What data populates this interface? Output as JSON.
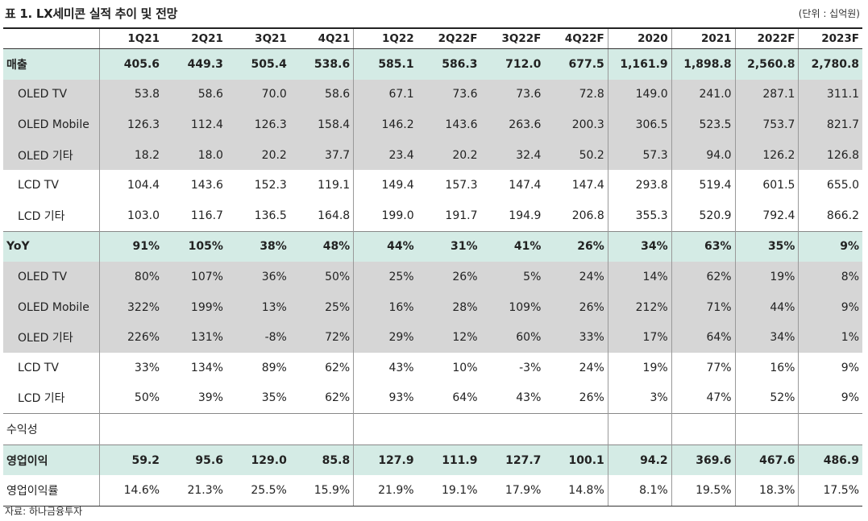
{
  "title": "표 1. LX세미콘 실적 추이 및 전망",
  "unit": "(단위 : 십억원)",
  "columns": [
    "1Q21",
    "2Q21",
    "3Q21",
    "4Q21",
    "1Q22",
    "2Q22F",
    "3Q22F",
    "4Q22F",
    "2020",
    "2021",
    "2022F",
    "2023F"
  ],
  "rows": [
    {
      "label": "매출",
      "style": "main",
      "values": [
        "405.6",
        "449.3",
        "505.4",
        "538.6",
        "585.1",
        "586.3",
        "712.0",
        "677.5",
        "1,161.9",
        "1,898.8",
        "2,560.8",
        "2,780.8"
      ]
    },
    {
      "label": "OLED TV",
      "style": "grey",
      "values": [
        "53.8",
        "58.6",
        "70.0",
        "58.6",
        "67.1",
        "73.6",
        "73.6",
        "72.8",
        "149.0",
        "241.0",
        "287.1",
        "311.1"
      ]
    },
    {
      "label": "OLED Mobile",
      "style": "grey",
      "values": [
        "126.3",
        "112.4",
        "126.3",
        "158.4",
        "146.2",
        "143.6",
        "263.6",
        "200.3",
        "306.5",
        "523.5",
        "753.7",
        "821.7"
      ]
    },
    {
      "label": "OLED  기타",
      "style": "grey",
      "values": [
        "18.2",
        "18.0",
        "20.2",
        "37.7",
        "23.4",
        "20.2",
        "32.4",
        "50.2",
        "57.3",
        "94.0",
        "126.2",
        "126.8"
      ]
    },
    {
      "label": "LCD TV",
      "style": "white",
      "values": [
        "104.4",
        "143.6",
        "152.3",
        "119.1",
        "149.4",
        "157.3",
        "147.4",
        "147.4",
        "293.8",
        "519.4",
        "601.5",
        "655.0"
      ]
    },
    {
      "label": "LCD  기타",
      "style": "white",
      "values": [
        "103.0",
        "116.7",
        "136.5",
        "164.8",
        "199.0",
        "191.7",
        "194.9",
        "206.8",
        "355.3",
        "520.9",
        "792.4",
        "866.2"
      ]
    },
    {
      "label": "YoY",
      "style": "main",
      "values": [
        "91%",
        "105%",
        "38%",
        "48%",
        "44%",
        "31%",
        "41%",
        "26%",
        "34%",
        "63%",
        "35%",
        "9%"
      ]
    },
    {
      "label": "OLED TV",
      "style": "grey",
      "values": [
        "80%",
        "107%",
        "36%",
        "50%",
        "25%",
        "26%",
        "5%",
        "24%",
        "14%",
        "62%",
        "19%",
        "8%"
      ]
    },
    {
      "label": "OLED Mobile",
      "style": "grey",
      "values": [
        "322%",
        "199%",
        "13%",
        "25%",
        "16%",
        "28%",
        "109%",
        "26%",
        "212%",
        "71%",
        "44%",
        "9%"
      ]
    },
    {
      "label": "OLED  기타",
      "style": "grey",
      "values": [
        "226%",
        "131%",
        "-8%",
        "72%",
        "29%",
        "12%",
        "60%",
        "33%",
        "17%",
        "64%",
        "34%",
        "1%"
      ]
    },
    {
      "label": "LCD TV",
      "style": "white",
      "values": [
        "33%",
        "134%",
        "89%",
        "62%",
        "43%",
        "10%",
        "-3%",
        "24%",
        "19%",
        "77%",
        "16%",
        "9%"
      ]
    },
    {
      "label": "LCD  기타",
      "style": "white",
      "values": [
        "50%",
        "39%",
        "35%",
        "62%",
        "93%",
        "64%",
        "43%",
        "26%",
        "3%",
        "47%",
        "52%",
        "9%"
      ]
    },
    {
      "label": "수익성",
      "style": "section",
      "values": [
        "",
        "",
        "",
        "",
        "",
        "",
        "",
        "",
        "",
        "",
        "",
        ""
      ]
    },
    {
      "label": "영업이익",
      "style": "main",
      "values": [
        "59.2",
        "95.6",
        "129.0",
        "85.8",
        "127.9",
        "111.9",
        "127.7",
        "100.1",
        "94.2",
        "369.6",
        "467.6",
        "486.9"
      ]
    },
    {
      "label": "영업이익률",
      "style": "white",
      "values": [
        "14.6%",
        "21.3%",
        "25.5%",
        "15.9%",
        "21.9%",
        "19.1%",
        "17.9%",
        "14.8%",
        "8.1%",
        "19.5%",
        "18.3%",
        "17.5%"
      ]
    }
  ],
  "source": "자료: 하나금융투자",
  "colors": {
    "highlight": "#d4ebe5",
    "shade": "#d6d6d6",
    "plain": "#ffffff"
  }
}
